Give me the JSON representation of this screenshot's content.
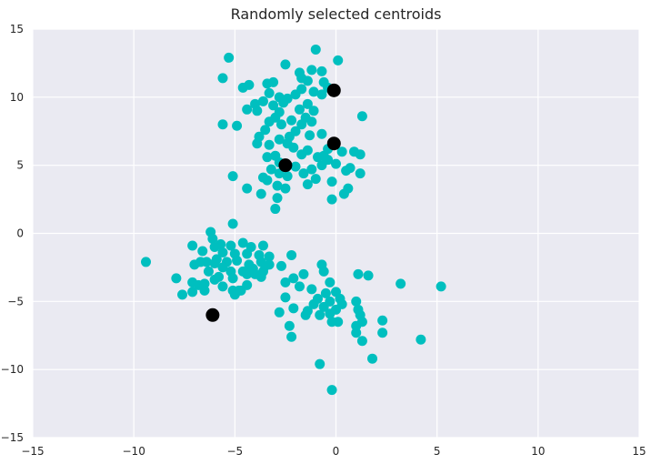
{
  "chart_data": {
    "type": "scatter",
    "title": "Randomly selected centroids",
    "xlabel": "",
    "ylabel": "",
    "xlim": [
      -15,
      15
    ],
    "ylim": [
      -15,
      15
    ],
    "xticks": [
      "−15",
      "−10",
      "−5",
      "0",
      "5",
      "10",
      "15"
    ],
    "yticks": [
      "15",
      "10",
      "5",
      "0",
      "−5",
      "−10",
      "−15"
    ],
    "xtick_values": [
      -15,
      -10,
      -5,
      0,
      5,
      10,
      15
    ],
    "ytick_values": [
      15,
      10,
      5,
      0,
      -5,
      -10,
      -15
    ],
    "grid": true,
    "background": "#eaeaf2",
    "series": [
      {
        "color": "#00bfbf",
        "points": [
          [
            -5.3,
            12.9
          ],
          [
            -1.0,
            13.5
          ],
          [
            0.1,
            12.7
          ],
          [
            -5.6,
            11.4
          ],
          [
            -4.6,
            10.7
          ],
          [
            -4.3,
            10.9
          ],
          [
            -3.4,
            11.0
          ],
          [
            -3.1,
            11.1
          ],
          [
            -2.5,
            12.4
          ],
          [
            -1.8,
            11.8
          ],
          [
            -1.7,
            11.4
          ],
          [
            -1.4,
            11.2
          ],
          [
            -1.2,
            12.0
          ],
          [
            -0.7,
            11.9
          ],
          [
            -0.6,
            11.1
          ],
          [
            -0.4,
            10.7
          ],
          [
            -1.1,
            10.4
          ],
          [
            -0.7,
            10.2
          ],
          [
            -1.7,
            10.6
          ],
          [
            -2.0,
            10.2
          ],
          [
            -2.4,
            9.9
          ],
          [
            -2.8,
            10.0
          ],
          [
            -3.3,
            10.3
          ],
          [
            -3.6,
            9.7
          ],
          [
            -4.0,
            9.5
          ],
          [
            -4.4,
            9.1
          ],
          [
            -3.9,
            9.0
          ],
          [
            -3.1,
            9.4
          ],
          [
            -2.8,
            8.9
          ],
          [
            -2.6,
            9.6
          ],
          [
            -1.8,
            9.1
          ],
          [
            -1.4,
            9.5
          ],
          [
            -1.1,
            9.0
          ],
          [
            -1.5,
            8.5
          ],
          [
            -1.7,
            8.0
          ],
          [
            -1.2,
            8.2
          ],
          [
            -2.2,
            8.3
          ],
          [
            -2.7,
            8.0
          ],
          [
            -3.0,
            8.5
          ],
          [
            -3.3,
            8.2
          ],
          [
            -3.5,
            7.6
          ],
          [
            -3.8,
            7.1
          ],
          [
            -3.9,
            6.6
          ],
          [
            -3.3,
            6.5
          ],
          [
            -2.8,
            6.9
          ],
          [
            -2.3,
            7.1
          ],
          [
            -2.0,
            7.5
          ],
          [
            -1.3,
            7.2
          ],
          [
            -0.7,
            7.3
          ],
          [
            -5.6,
            8.0
          ],
          [
            -4.9,
            7.9
          ],
          [
            1.3,
            8.6
          ],
          [
            -3.4,
            5.6
          ],
          [
            -3.0,
            5.7
          ],
          [
            -2.8,
            5.2
          ],
          [
            -2.1,
            6.3
          ],
          [
            -1.7,
            5.8
          ],
          [
            -1.4,
            6.1
          ],
          [
            -0.9,
            5.6
          ],
          [
            -0.6,
            5.7
          ],
          [
            -0.4,
            6.2
          ],
          [
            -2.4,
            6.6
          ],
          [
            -2.0,
            4.9
          ],
          [
            -1.6,
            4.4
          ],
          [
            -1.2,
            4.7
          ],
          [
            -0.7,
            5.0
          ],
          [
            -0.4,
            5.4
          ],
          [
            0.0,
            5.1
          ],
          [
            0.3,
            6.0
          ],
          [
            0.7,
            4.8
          ],
          [
            0.9,
            6.0
          ],
          [
            1.2,
            5.8
          ],
          [
            1.2,
            4.4
          ],
          [
            0.5,
            4.6
          ],
          [
            -2.4,
            4.2
          ],
          [
            -2.8,
            4.4
          ],
          [
            -3.2,
            4.7
          ],
          [
            -3.6,
            4.1
          ],
          [
            -5.1,
            4.2
          ],
          [
            -3.4,
            3.9
          ],
          [
            -2.9,
            3.5
          ],
          [
            -2.5,
            3.3
          ],
          [
            -1.4,
            3.6
          ],
          [
            -1.0,
            4.0
          ],
          [
            -0.2,
            3.8
          ],
          [
            0.6,
            3.3
          ],
          [
            0.4,
            2.9
          ],
          [
            -0.2,
            2.5
          ],
          [
            -2.9,
            2.6
          ],
          [
            -3.7,
            2.9
          ],
          [
            -4.4,
            3.3
          ],
          [
            -3.0,
            1.8
          ],
          [
            -5.1,
            0.7
          ],
          [
            -6.2,
            0.1
          ],
          [
            -6.1,
            -0.4
          ],
          [
            -5.7,
            -0.8
          ],
          [
            -5.2,
            -0.9
          ],
          [
            -4.6,
            -0.7
          ],
          [
            -4.2,
            -1.0
          ],
          [
            -3.6,
            -0.9
          ],
          [
            -3.3,
            -1.7
          ],
          [
            -2.2,
            -1.6
          ],
          [
            -7.1,
            -0.9
          ],
          [
            -6.6,
            -1.3
          ],
          [
            -6.0,
            -1.0
          ],
          [
            -5.6,
            -1.4
          ],
          [
            -5.0,
            -1.5
          ],
          [
            -4.4,
            -1.5
          ],
          [
            -3.8,
            -1.6
          ],
          [
            -5.9,
            -1.9
          ],
          [
            -5.4,
            -2.1
          ],
          [
            -4.9,
            -2.0
          ],
          [
            -4.3,
            -2.3
          ],
          [
            -3.7,
            -2.1
          ],
          [
            -3.5,
            -2.4
          ],
          [
            -6.4,
            -2.1
          ],
          [
            -6.0,
            -2.2
          ],
          [
            -5.6,
            -2.5
          ],
          [
            -5.2,
            -2.8
          ],
          [
            -4.6,
            -2.8
          ],
          [
            -4.1,
            -2.6
          ],
          [
            -3.6,
            -2.8
          ],
          [
            -7.0,
            -2.3
          ],
          [
            -6.7,
            -2.1
          ],
          [
            -6.3,
            -2.8
          ],
          [
            -5.8,
            -3.2
          ],
          [
            -5.1,
            -3.3
          ],
          [
            -4.4,
            -3.0
          ],
          [
            -3.3,
            -2.3
          ],
          [
            -2.7,
            -2.4
          ],
          [
            -9.4,
            -2.1
          ],
          [
            -7.9,
            -3.3
          ],
          [
            -7.1,
            -3.6
          ],
          [
            -6.8,
            -3.8
          ],
          [
            -6.5,
            -3.7
          ],
          [
            -6.0,
            -3.4
          ],
          [
            -5.6,
            -3.9
          ],
          [
            -5.1,
            -4.2
          ],
          [
            -4.8,
            -4.2
          ],
          [
            -4.4,
            -3.8
          ],
          [
            -4.0,
            -3.0
          ],
          [
            -3.7,
            -3.2
          ],
          [
            -7.6,
            -4.5
          ],
          [
            -7.1,
            -4.3
          ],
          [
            -6.5,
            -4.2
          ],
          [
            -5.0,
            -4.5
          ],
          [
            -4.7,
            -4.2
          ],
          [
            -2.5,
            -3.6
          ],
          [
            -2.1,
            -3.3
          ],
          [
            -1.8,
            -3.9
          ],
          [
            -1.2,
            -4.1
          ],
          [
            -1.6,
            -3.0
          ],
          [
            -0.7,
            -2.3
          ],
          [
            -0.6,
            -2.8
          ],
          [
            -0.3,
            -3.6
          ],
          [
            -0.5,
            -4.4
          ],
          [
            -0.9,
            -4.8
          ],
          [
            -1.1,
            -5.2
          ],
          [
            -0.6,
            -5.4
          ],
          [
            -0.3,
            -5.0
          ],
          [
            0.0,
            -4.3
          ],
          [
            0.2,
            -4.8
          ],
          [
            0.3,
            -5.2
          ],
          [
            0.0,
            -5.6
          ],
          [
            -0.3,
            -5.9
          ],
          [
            -0.8,
            -6.0
          ],
          [
            -1.4,
            -5.7
          ],
          [
            -1.5,
            -6.0
          ],
          [
            -2.5,
            -4.7
          ],
          [
            -2.1,
            -5.5
          ],
          [
            -2.8,
            -5.8
          ],
          [
            -2.3,
            -6.8
          ],
          [
            -2.2,
            -7.6
          ],
          [
            -0.2,
            -6.5
          ],
          [
            0.1,
            -6.5
          ],
          [
            1.0,
            -5.0
          ],
          [
            1.1,
            -5.6
          ],
          [
            1.2,
            -6.0
          ],
          [
            1.3,
            -6.5
          ],
          [
            1.0,
            -6.8
          ],
          [
            1.0,
            -7.3
          ],
          [
            1.3,
            -7.9
          ],
          [
            2.3,
            -6.4
          ],
          [
            2.3,
            -7.3
          ],
          [
            1.8,
            -9.2
          ],
          [
            1.1,
            -3.0
          ],
          [
            1.6,
            -3.1
          ],
          [
            3.2,
            -3.7
          ],
          [
            5.2,
            -3.9
          ],
          [
            4.2,
            -7.8
          ],
          [
            -0.8,
            -9.6
          ],
          [
            -0.2,
            -11.5
          ]
        ]
      },
      {
        "color": "#000000",
        "points": [
          [
            -0.1,
            10.5
          ],
          [
            -0.1,
            6.6
          ],
          [
            -2.5,
            5.0
          ],
          [
            -6.1,
            -6.0
          ]
        ]
      }
    ]
  }
}
